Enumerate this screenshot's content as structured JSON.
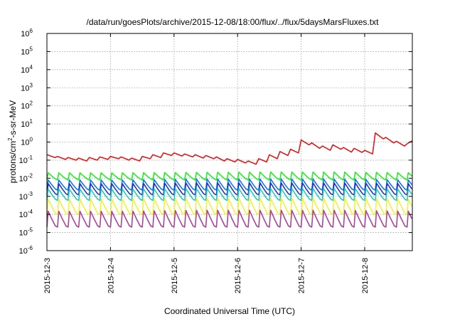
{
  "chart_data": {
    "type": "line",
    "title": "/data/run/goesPlots/archive/2015-12-08/18:00/flux/../flux/5daysMarsFluxes.txt",
    "xlabel": "Coordinated Universal Time (UTC)",
    "ylabel": "protons/cm2-s-sr-MeV",
    "ylabel_parts": {
      "before": "protons/cm",
      "sup": "2",
      "after": "-s-sr-MeV"
    },
    "yscale": "log",
    "ylim": [
      1e-06,
      1000000.0
    ],
    "y_ticks": [
      {
        "base": "10",
        "exp": "-6"
      },
      {
        "base": "10",
        "exp": "-5"
      },
      {
        "base": "10",
        "exp": "-4"
      },
      {
        "base": "10",
        "exp": "-3"
      },
      {
        "base": "10",
        "exp": "-2"
      },
      {
        "base": "10",
        "exp": "-1"
      },
      {
        "base": "10",
        "exp": "0"
      },
      {
        "base": "10",
        "exp": "1"
      },
      {
        "base": "10",
        "exp": "2"
      },
      {
        "base": "10",
        "exp": "3"
      },
      {
        "base": "10",
        "exp": "4"
      },
      {
        "base": "10",
        "exp": "5"
      },
      {
        "base": "10",
        "exp": "6"
      }
    ],
    "xlim": [
      "2015-12-03T00:00",
      "2015-12-08T18:00"
    ],
    "x_ticks": [
      "2015-12-3",
      "2015-12-4",
      "2015-12-5",
      "2015-12-6",
      "2015-12-7",
      "2015-12-8"
    ],
    "grid": true,
    "series": [
      {
        "color": "#e0191b",
        "x": [
          "2015-12-03T00:00",
          "2015-12-03T03:00",
          "2015-12-03T04:00",
          "2015-12-03T07:00",
          "2015-12-03T08:00",
          "2015-12-03T11:00",
          "2015-12-03T12:00",
          "2015-12-03T15:00",
          "2015-12-03T16:00",
          "2015-12-03T19:00",
          "2015-12-03T20:00",
          "2015-12-03T23:00",
          "2015-12-04T00:00",
          "2015-12-04T03:00",
          "2015-12-04T04:00",
          "2015-12-04T07:00",
          "2015-12-04T08:00",
          "2015-12-04T11:00",
          "2015-12-04T12:00",
          "2015-12-04T15:00",
          "2015-12-04T16:00",
          "2015-12-04T19:00",
          "2015-12-04T20:00",
          "2015-12-04T23:00",
          "2015-12-05T00:00",
          "2015-12-05T03:00",
          "2015-12-05T04:00",
          "2015-12-05T07:00",
          "2015-12-05T08:00",
          "2015-12-05T11:00",
          "2015-12-05T12:00",
          "2015-12-05T15:00",
          "2015-12-05T16:00",
          "2015-12-05T19:00",
          "2015-12-05T20:00",
          "2015-12-05T23:00",
          "2015-12-06T00:00",
          "2015-12-06T03:00",
          "2015-12-06T04:00",
          "2015-12-06T07:00",
          "2015-12-06T08:00",
          "2015-12-06T11:00",
          "2015-12-06T12:00",
          "2015-12-06T15:00",
          "2015-12-06T16:00",
          "2015-12-06T19:00",
          "2015-12-06T20:00",
          "2015-12-06T23:00",
          "2015-12-07T00:00",
          "2015-12-07T03:00",
          "2015-12-07T04:00",
          "2015-12-07T07:00",
          "2015-12-07T08:00",
          "2015-12-07T11:00",
          "2015-12-07T12:00",
          "2015-12-07T15:00",
          "2015-12-07T16:00",
          "2015-12-07T19:00",
          "2015-12-07T20:00",
          "2015-12-07T23:00",
          "2015-12-08T00:00",
          "2015-12-08T03:00",
          "2015-12-08T04:00",
          "2015-12-08T07:00",
          "2015-12-08T08:00",
          "2015-12-08T11:00",
          "2015-12-08T12:00",
          "2015-12-08T15:00",
          "2015-12-08T16:00",
          "2015-12-08T18:00"
        ],
        "values": [
          0.2,
          0.14,
          0.16,
          0.11,
          0.14,
          0.1,
          0.13,
          0.09,
          0.14,
          0.1,
          0.15,
          0.11,
          0.16,
          0.12,
          0.15,
          0.1,
          0.13,
          0.09,
          0.16,
          0.12,
          0.2,
          0.14,
          0.25,
          0.18,
          0.25,
          0.17,
          0.22,
          0.15,
          0.2,
          0.13,
          0.18,
          0.12,
          0.15,
          0.09,
          0.12,
          0.08,
          0.11,
          0.07,
          0.09,
          0.06,
          0.12,
          0.08,
          0.2,
          0.12,
          0.3,
          0.18,
          0.4,
          0.25,
          1.3,
          0.7,
          0.9,
          0.45,
          0.6,
          0.35,
          0.7,
          0.4,
          0.5,
          0.28,
          0.45,
          0.27,
          0.35,
          0.22,
          3.2,
          1.5,
          1.8,
          0.9,
          1.1,
          0.6,
          0.8,
          1.2
        ]
      },
      {
        "color": "#22ee22",
        "cycle_hours": 4,
        "min_values": [
          0.008,
          0.008,
          0.008,
          0.008,
          0.008,
          0.008
        ],
        "max_values": [
          0.02,
          0.02,
          0.021,
          0.022,
          0.022,
          0.02
        ]
      },
      {
        "color": "#1177ee",
        "cycle_hours": 4,
        "min_values": [
          0.0022,
          0.0022,
          0.0022,
          0.0022,
          0.0022,
          0.0022
        ],
        "max_values": [
          0.008,
          0.008,
          0.009,
          0.009,
          0.009,
          0.008
        ]
      },
      {
        "color": "#2233bb",
        "cycle_hours": 4,
        "min_values": [
          0.0012,
          0.0012,
          0.0012,
          0.0012,
          0.0012,
          0.0012
        ],
        "max_values": [
          0.005,
          0.005,
          0.0055,
          0.0055,
          0.0055,
          0.005
        ]
      },
      {
        "color": "#22ccbb",
        "cycle_hours": 4,
        "min_values": [
          0.0006,
          0.0006,
          0.0006,
          0.0006,
          0.0006,
          0.0006
        ],
        "max_values": [
          0.0025,
          0.0025,
          0.0027,
          0.0027,
          0.0027,
          0.0025
        ]
      },
      {
        "color": "#f0f040",
        "cycle_hours": 4,
        "min_values": [
          0.0001,
          0.0001,
          0.0001,
          0.0001,
          0.0001,
          0.0001
        ],
        "max_values": [
          0.0007,
          0.0007,
          0.0008,
          0.0008,
          0.0008,
          0.0007
        ]
      },
      {
        "color": "#aa4499",
        "cycle_hours": 4,
        "min_values": [
          2e-05,
          2e-05,
          2e-05,
          2e-05,
          2e-05,
          2e-05
        ],
        "max_values": [
          0.00015,
          0.00015,
          0.00017,
          0.00017,
          0.00017,
          0.00015
        ]
      }
    ]
  }
}
